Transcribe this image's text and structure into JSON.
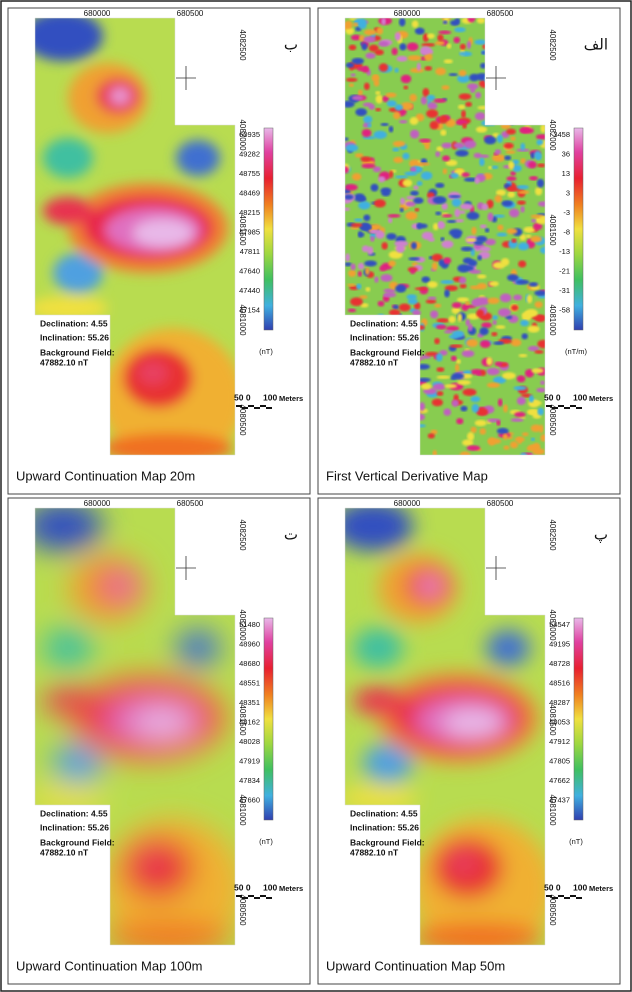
{
  "panels": [
    {
      "label": "ب",
      "caption": "Upward Continuation Map 20m",
      "unit": "(nT)",
      "colorbar_labels": [
        "60935",
        "49282",
        "48755",
        "48469",
        "48215",
        "47985",
        "47811",
        "47640",
        "47440",
        "47154"
      ]
    },
    {
      "label": "الف",
      "caption": "First Vertical Derivative Map",
      "unit": "(nT/m)",
      "colorbar_labels": [
        "3458",
        "36",
        "13",
        "3",
        "-3",
        "-8",
        "-13",
        "-21",
        "-31",
        "-58"
      ]
    },
    {
      "label": "ت",
      "caption": "Upward Continuation Map 100m",
      "unit": "(nT)",
      "colorbar_labels": [
        "51480",
        "48960",
        "48680",
        "48551",
        "48351",
        "48162",
        "48028",
        "47919",
        "47834",
        "47660"
      ]
    },
    {
      "label": "پ",
      "caption": "Upward Continuation Map 50m",
      "unit": "(nT)",
      "colorbar_labels": [
        "54547",
        "49195",
        "48728",
        "48516",
        "48287",
        "48053",
        "47912",
        "47805",
        "47662",
        "47437"
      ]
    }
  ],
  "axes": {
    "x_labels": [
      "680000",
      "680500"
    ],
    "y_labels": [
      "4082500",
      "4082000",
      "4081500",
      "4081000",
      "4080500"
    ]
  },
  "annotations": {
    "declination": "Declination: 4.55",
    "inclination": "Inclination: 55.26",
    "background": "Background Field:",
    "field_value": "47882.10 nT"
  },
  "scale_bar": {
    "left": "50 0",
    "right": "100",
    "unit": "Meters"
  }
}
